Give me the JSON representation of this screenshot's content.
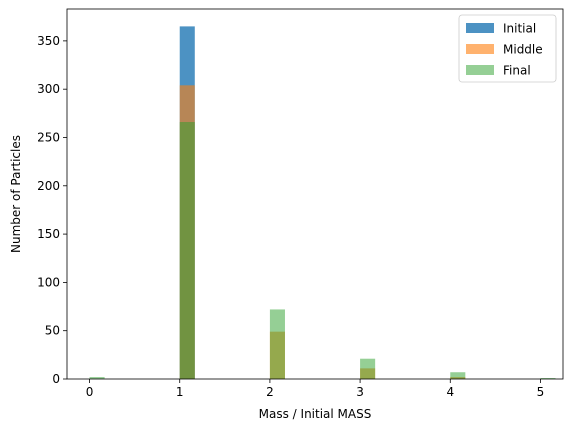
{
  "chart_data": {
    "type": "bar",
    "xlabel": "Mass / Initial MASS",
    "ylabel": "Number of Particles",
    "xlim": [
      -0.25,
      5.25
    ],
    "ylim": [
      0,
      383
    ],
    "xticks": [
      0,
      1,
      2,
      3,
      4,
      5
    ],
    "yticks": [
      0,
      50,
      100,
      150,
      200,
      250,
      300,
      350
    ],
    "legend_position": "top-right",
    "bin_width": 0.167,
    "series": [
      {
        "name": "Initial",
        "color": "#1f77b4",
        "opacity": 0.8,
        "points": [
          {
            "x": 1,
            "y": 365
          }
        ]
      },
      {
        "name": "Middle",
        "color": "#ff7f0e",
        "opacity": 0.6,
        "points": [
          {
            "x": 1,
            "y": 304
          },
          {
            "x": 2,
            "y": 49
          },
          {
            "x": 3,
            "y": 11
          },
          {
            "x": 4,
            "y": 2
          }
        ]
      },
      {
        "name": "Final",
        "color": "#2ca02c",
        "opacity": 0.5,
        "points": [
          {
            "x": 0,
            "y": 2
          },
          {
            "x": 1,
            "y": 266
          },
          {
            "x": 2,
            "y": 72
          },
          {
            "x": 3,
            "y": 21
          },
          {
            "x": 4,
            "y": 7
          },
          {
            "x": 5,
            "y": 1
          }
        ]
      }
    ]
  }
}
